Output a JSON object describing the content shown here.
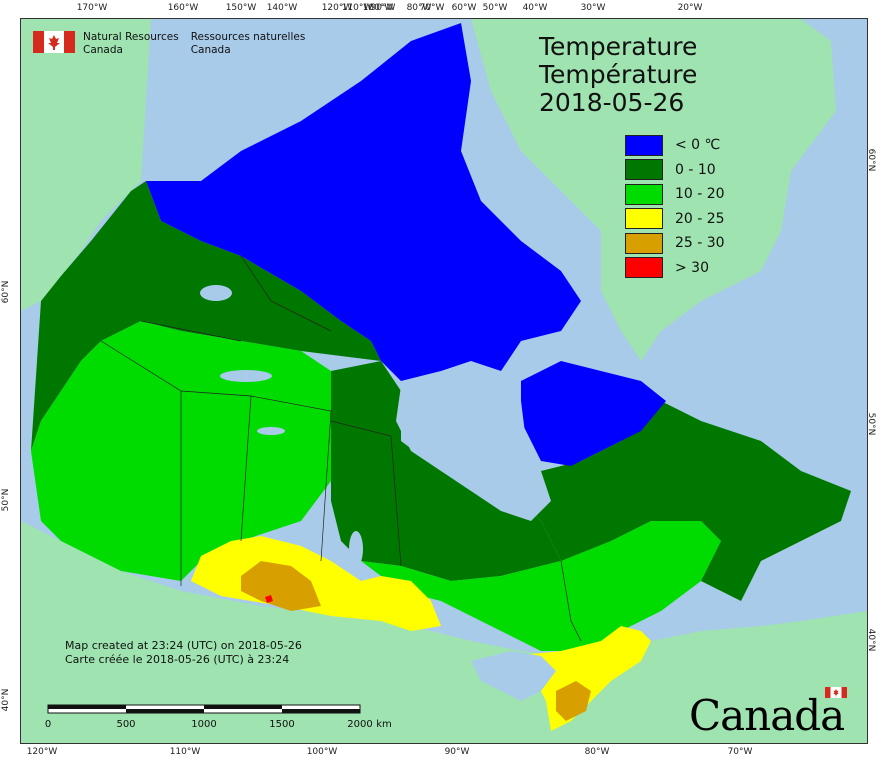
{
  "agency": {
    "en_line1": "Natural Resources",
    "en_line2": "Canada",
    "fr_line1": "Ressources naturelles",
    "fr_line2": "Canada"
  },
  "title": {
    "line1": "Temperature",
    "line2": "Température",
    "date": "2018-05-26"
  },
  "legend": [
    {
      "label": "< 0 ℃",
      "color": "#0000ff"
    },
    {
      "label": "0 - 10",
      "color": "#007800"
    },
    {
      "label": "10 - 20",
      "color": "#00dc00"
    },
    {
      "label": "20 - 25",
      "color": "#ffff00"
    },
    {
      "label": "25 - 30",
      "color": "#d7a000"
    },
    {
      "label": "> 30",
      "color": "#ff0000"
    }
  ],
  "colors": {
    "ocean": "#a8cbea",
    "foreign_land": "#9ee3b0",
    "lakes": "#a8cbea"
  },
  "created": {
    "en": "Map created at 23:24 (UTC) on 2018-05-26",
    "fr": "Carte créée le 2018-05-26 (UTC) à 23:24"
  },
  "scale": {
    "labels": [
      "0",
      "500",
      "1000",
      "1500",
      "2000"
    ],
    "unit": "km"
  },
  "wordmark": "Canada",
  "graticule": {
    "top": [
      "170°W",
      "160°W",
      "150°W",
      "140°W",
      "120°W",
      "110°W",
      "100°W",
      "90°W",
      "80°W",
      "70°W",
      "60°W",
      "50°W",
      "40°W",
      "30°W",
      "20°W"
    ],
    "bottom": [
      "120°W",
      "110°W",
      "100°W",
      "90°W",
      "80°W",
      "70°W"
    ],
    "left": [
      "60°N",
      "50°N",
      "40°N"
    ],
    "right": [
      "60°N",
      "50°N",
      "40°N"
    ]
  }
}
